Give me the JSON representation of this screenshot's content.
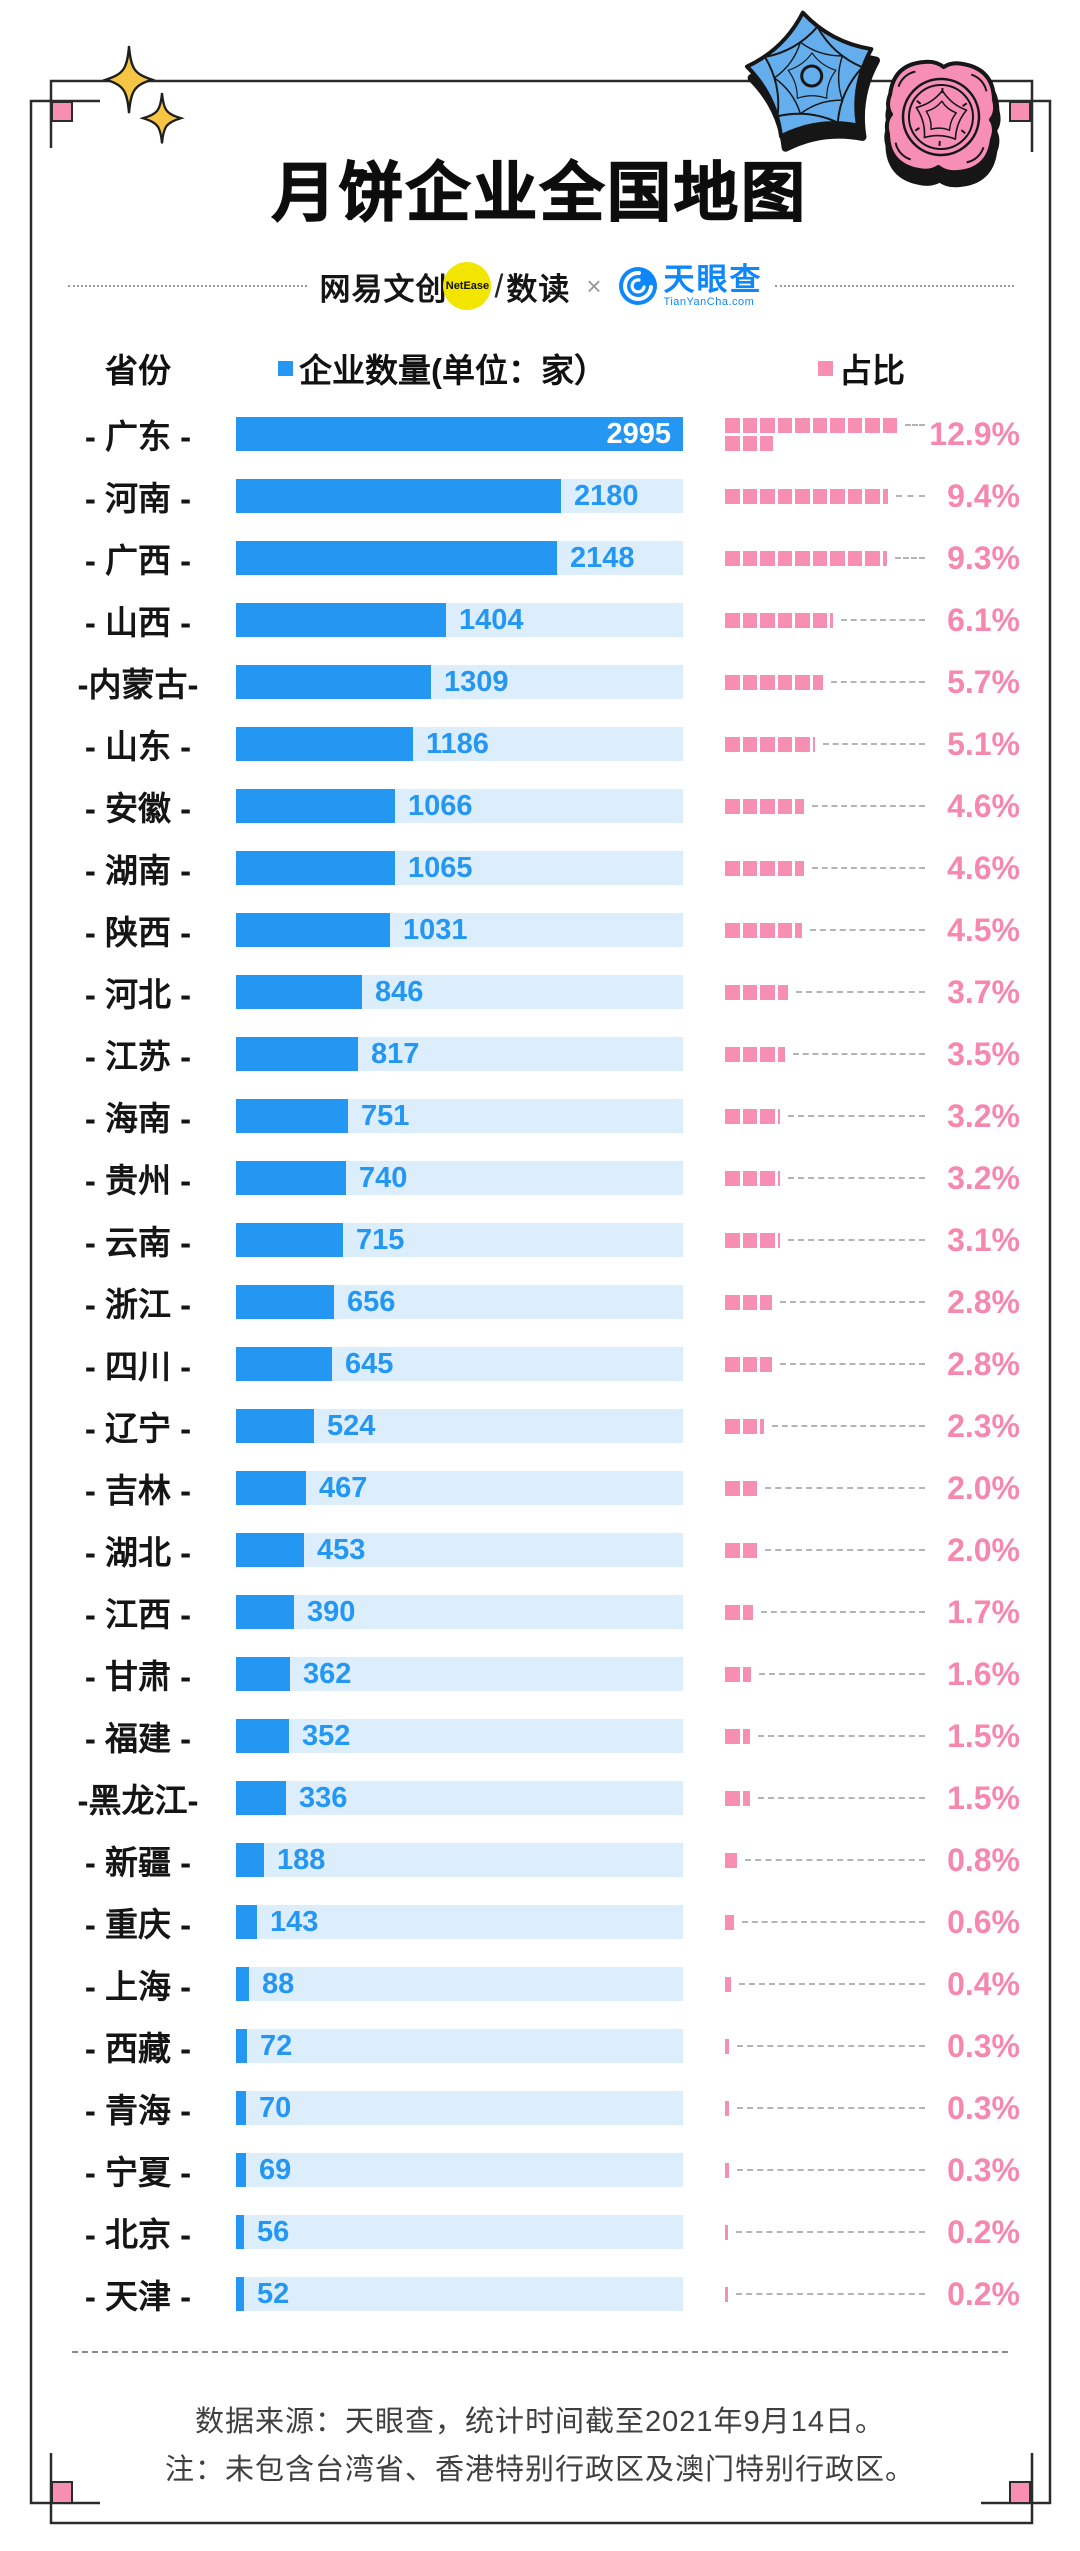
{
  "page": {
    "title": "月饼企业全国地图"
  },
  "logos": {
    "netease": "网易文创",
    "netease_badge": "NetEase",
    "slash": "/",
    "shudu": "数读",
    "times": "×",
    "tianyancha": "天眼查",
    "tianyancha_sub": "TianYanCha.com"
  },
  "legend": {
    "province": "省份",
    "count": "企业数量(单位：家）",
    "share": "占比"
  },
  "chart_data": {
    "type": "bar",
    "title": "月饼企业全国地图",
    "value_unit": "家",
    "max_value": 2995,
    "squares_per_line": 10,
    "percent_per_square": 1,
    "rows": [
      {
        "name": "广东",
        "label": "- 广东 -",
        "value": 2995,
        "percent": "12.9%",
        "percent_value": 12.9
      },
      {
        "name": "河南",
        "label": "- 河南 -",
        "value": 2180,
        "percent": "9.4%",
        "percent_value": 9.4
      },
      {
        "name": "广西",
        "label": "- 广西 -",
        "value": 2148,
        "percent": "9.3%",
        "percent_value": 9.3
      },
      {
        "name": "山西",
        "label": "- 山西 -",
        "value": 1404,
        "percent": "6.1%",
        "percent_value": 6.1
      },
      {
        "name": "内蒙古",
        "label": "-内蒙古-",
        "value": 1309,
        "percent": "5.7%",
        "percent_value": 5.7
      },
      {
        "name": "山东",
        "label": "- 山东 -",
        "value": 1186,
        "percent": "5.1%",
        "percent_value": 5.1
      },
      {
        "name": "安徽",
        "label": "- 安徽 -",
        "value": 1066,
        "percent": "4.6%",
        "percent_value": 4.6
      },
      {
        "name": "湖南",
        "label": "- 湖南 -",
        "value": 1065,
        "percent": "4.6%",
        "percent_value": 4.6
      },
      {
        "name": "陕西",
        "label": "- 陕西 -",
        "value": 1031,
        "percent": "4.5%",
        "percent_value": 4.5
      },
      {
        "name": "河北",
        "label": "- 河北 -",
        "value": 846,
        "percent": "3.7%",
        "percent_value": 3.7
      },
      {
        "name": "江苏",
        "label": "- 江苏 -",
        "value": 817,
        "percent": "3.5%",
        "percent_value": 3.5
      },
      {
        "name": "海南",
        "label": "- 海南 -",
        "value": 751,
        "percent": "3.2%",
        "percent_value": 3.2
      },
      {
        "name": "贵州",
        "label": "- 贵州 -",
        "value": 740,
        "percent": "3.2%",
        "percent_value": 3.2
      },
      {
        "name": "云南",
        "label": "- 云南 -",
        "value": 715,
        "percent": "3.1%",
        "percent_value": 3.1
      },
      {
        "name": "浙江",
        "label": "- 浙江 -",
        "value": 656,
        "percent": "2.8%",
        "percent_value": 2.8
      },
      {
        "name": "四川",
        "label": "- 四川 -",
        "value": 645,
        "percent": "2.8%",
        "percent_value": 2.8
      },
      {
        "name": "辽宁",
        "label": "- 辽宁 -",
        "value": 524,
        "percent": "2.3%",
        "percent_value": 2.3
      },
      {
        "name": "吉林",
        "label": "- 吉林 -",
        "value": 467,
        "percent": "2.0%",
        "percent_value": 2.0
      },
      {
        "name": "湖北",
        "label": "- 湖北 -",
        "value": 453,
        "percent": "2.0%",
        "percent_value": 2.0
      },
      {
        "name": "江西",
        "label": "- 江西 -",
        "value": 390,
        "percent": "1.7%",
        "percent_value": 1.7
      },
      {
        "name": "甘肃",
        "label": "- 甘肃 -",
        "value": 362,
        "percent": "1.6%",
        "percent_value": 1.6
      },
      {
        "name": "福建",
        "label": "- 福建 -",
        "value": 352,
        "percent": "1.5%",
        "percent_value": 1.5
      },
      {
        "name": "黑龙江",
        "label": "-黑龙江-",
        "value": 336,
        "percent": "1.5%",
        "percent_value": 1.5
      },
      {
        "name": "新疆",
        "label": "- 新疆 -",
        "value": 188,
        "percent": "0.8%",
        "percent_value": 0.8
      },
      {
        "name": "重庆",
        "label": "- 重庆 -",
        "value": 143,
        "percent": "0.6%",
        "percent_value": 0.6
      },
      {
        "name": "上海",
        "label": "- 上海 -",
        "value": 88,
        "percent": "0.4%",
        "percent_value": 0.4
      },
      {
        "name": "西藏",
        "label": "- 西藏 -",
        "value": 72,
        "percent": "0.3%",
        "percent_value": 0.3
      },
      {
        "name": "青海",
        "label": "- 青海 -",
        "value": 70,
        "percent": "0.3%",
        "percent_value": 0.3
      },
      {
        "name": "宁夏",
        "label": "- 宁夏 -",
        "value": 69,
        "percent": "0.3%",
        "percent_value": 0.3
      },
      {
        "name": "北京",
        "label": "- 北京 -",
        "value": 56,
        "percent": "0.2%",
        "percent_value": 0.2
      },
      {
        "name": "天津",
        "label": "- 天津 -",
        "value": 52,
        "percent": "0.2%",
        "percent_value": 0.2
      }
    ]
  },
  "footer": {
    "source": "数据来源：天眼查，统计时间截至2021年9月14日。",
    "note": "注：未包含台湾省、香港特别行政区及澳门特别行政区。"
  },
  "colors": {
    "bar_blue": "#2497F3",
    "bar_track": "#DCEDFB",
    "square_pink": "#F78FB2",
    "percent_pink": "#F687AE",
    "sparkle_yellow": "#F6C544",
    "netease_yellow": "#F2E600",
    "tianyancha_blue": "#0D87F9",
    "frame_line": "#2B2B2B",
    "mooncake_blue": "#64AEED",
    "mooncake_pink": "#F78FB4"
  }
}
